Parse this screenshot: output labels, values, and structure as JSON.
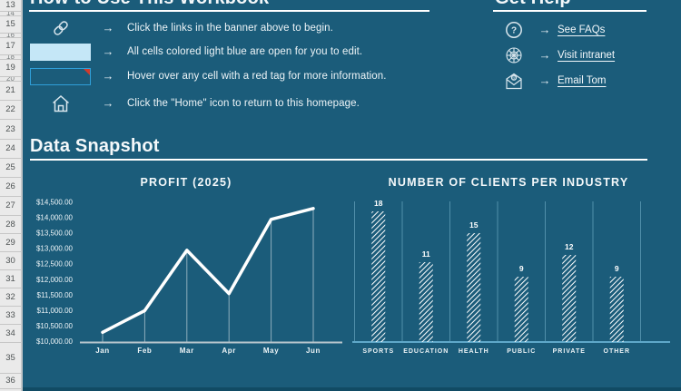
{
  "glyphs": {
    "arrow": "→"
  },
  "colors": {
    "sheet_background": "#1B5C7A",
    "footer_band": "#114B64",
    "edit_cell_fill": "#C5E7F7",
    "tag_cell_border": "#2F9FD9",
    "red_tag": "#D23A2B",
    "text": "#EDF4F7"
  },
  "row_header": {
    "rows": [
      {
        "label": "13",
        "h": 13
      },
      {
        "label": "14",
        "h": 5
      },
      {
        "label": "15",
        "h": 19
      },
      {
        "label": "16",
        "h": 5
      },
      {
        "label": "17",
        "h": 19
      },
      {
        "label": "18",
        "h": 5
      },
      {
        "label": "19",
        "h": 19
      },
      {
        "label": "20",
        "h": 5
      },
      {
        "label": "21",
        "h": 21
      },
      {
        "label": "22",
        "h": 21
      },
      {
        "label": "23",
        "h": 22
      },
      {
        "label": "24",
        "h": 21
      },
      {
        "label": "25",
        "h": 21
      },
      {
        "label": "26",
        "h": 21
      },
      {
        "label": "27",
        "h": 21
      },
      {
        "label": "28",
        "h": 20
      },
      {
        "label": "29",
        "h": 20
      },
      {
        "label": "30",
        "h": 20
      },
      {
        "label": "31",
        "h": 20
      },
      {
        "label": "32",
        "h": 20
      },
      {
        "label": "33",
        "h": 20
      },
      {
        "label": "34",
        "h": 20
      },
      {
        "label": "35",
        "h": 34
      },
      {
        "label": "36",
        "h": 17
      }
    ]
  },
  "sections": {
    "how_to": {
      "title": "How to Use This Workbook",
      "instructions": [
        {
          "icon": "link-icon",
          "text": "Click the links in the banner above to begin."
        },
        {
          "icon": "edit-cell-swatch",
          "text": "All cells colored light blue are open for you to edit."
        },
        {
          "icon": "red-tag-cell-swatch",
          "text": "Hover over any cell with a red tag for more information."
        },
        {
          "icon": "home-icon",
          "text": "Click the \"Home\" icon to return to this homepage."
        }
      ]
    },
    "get_help": {
      "title": "Get Help",
      "links": [
        {
          "icon": "help-icon",
          "label": "See FAQs"
        },
        {
          "icon": "web-icon",
          "label": "Visit intranet"
        },
        {
          "icon": "email-icon",
          "label": "Email Tom"
        }
      ]
    },
    "data_snapshot": {
      "title": "Data Snapshot"
    }
  },
  "chart_data": [
    {
      "type": "line",
      "title": "PROFIT (2025)",
      "x": [
        "Jan",
        "Feb",
        "Mar",
        "Apr",
        "May",
        "Jun"
      ],
      "values": [
        10300,
        11000,
        12950,
        11550,
        13950,
        14300
      ],
      "ylim": [
        10000,
        14500
      ],
      "ytick_step": 500,
      "ytick_labels": [
        "$14,500.00",
        "$14,000.00",
        "$13,500.00",
        "$13,000.00",
        "$12,500.00",
        "$12,000.00",
        "$11,500.00",
        "$11,000.00",
        "$10,500.00",
        "$10,000.00"
      ],
      "grid": "vertical-drop-lines",
      "legend": "none",
      "line_color": "#FFFFFF"
    },
    {
      "type": "bar",
      "title": "NUMBER OF CLIENTS PER INDUSTRY",
      "categories": [
        "SPORTS",
        "EDUCATION",
        "HEALTH",
        "PUBLIC",
        "PRIVATE",
        "OTHER"
      ],
      "values": [
        18,
        11,
        15,
        9,
        12,
        9
      ],
      "ylim": [
        0,
        20
      ],
      "grid": "vertical-category-lines",
      "legend": "none",
      "bar_style": "white-diagonal-hatch",
      "data_labels": true
    }
  ]
}
